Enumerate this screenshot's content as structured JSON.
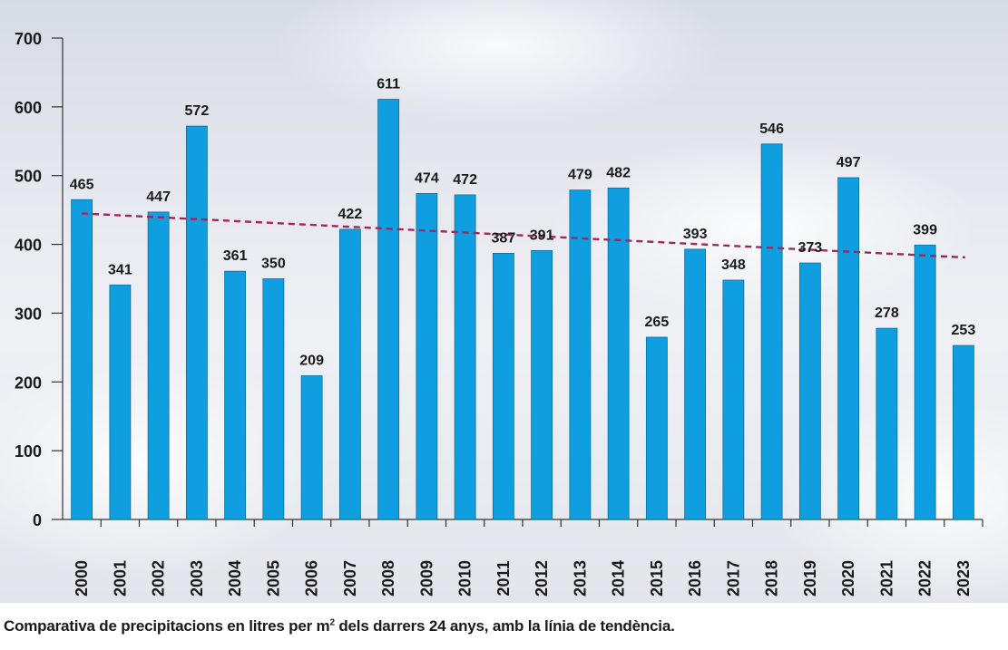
{
  "caption": {
    "before": "Comparativa de precipitacions en litres per m",
    "sup": "2",
    "after": " dels darrers 24 anys, amb la línia de tendència."
  },
  "chart_data": {
    "type": "bar",
    "categories": [
      "2000",
      "2001",
      "2002",
      "2003",
      "2004",
      "2005",
      "2006",
      "2007",
      "2008",
      "2009",
      "2010",
      "2011",
      "2012",
      "2013",
      "2014",
      "2015",
      "2016",
      "2017",
      "2018",
      "2019",
      "2020",
      "2021",
      "2022",
      "2023"
    ],
    "values": [
      465,
      341,
      447,
      572,
      361,
      350,
      209,
      422,
      611,
      474,
      472,
      387,
      391,
      479,
      482,
      265,
      393,
      348,
      546,
      373,
      497,
      278,
      399,
      253
    ],
    "data_labels": [
      "465",
      "341",
      "447",
      "572",
      "361",
      "350",
      "209",
      "422",
      "611",
      "474",
      "472",
      "387",
      "391",
      "479",
      "482",
      "265",
      "393",
      "348",
      "546",
      "373",
      "497",
      "278",
      "399",
      "253"
    ],
    "ylim": [
      0,
      700
    ],
    "yticks": [
      0,
      100,
      200,
      300,
      400,
      500,
      600,
      700
    ],
    "title": "",
    "xlabel": "",
    "ylabel": "",
    "bar_color": "#0f9fe0",
    "trend_line": {
      "start": 445,
      "end": 381,
      "color": "#a3265a",
      "style": "dashed"
    }
  }
}
